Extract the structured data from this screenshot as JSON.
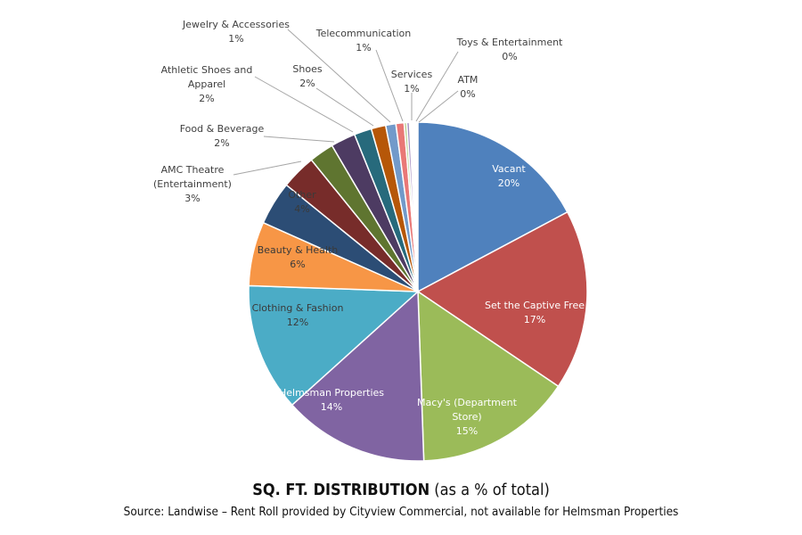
{
  "chart_data": {
    "type": "pie",
    "title_main": "SQ. FT. DISTRIBUTION",
    "title_sub": "(as a % of total)",
    "source": "Source: Landwise – Rent Roll provided by Cityview Commercial, not available for Helmsman Properties",
    "slices": [
      {
        "name": "Vacant",
        "value": 20,
        "label": "20%",
        "color": "#4f81bd"
      },
      {
        "name": "Set the Captive Free",
        "value": 17,
        "label": "17%",
        "color": "#c0504d"
      },
      {
        "name": "Macy's (Department Store)",
        "value": 15,
        "label": "15%",
        "color": "#9bbb59"
      },
      {
        "name": "Helmsman Properties",
        "value": 14,
        "label": "14%",
        "color": "#8064a2"
      },
      {
        "name": "Clothing & Fashion",
        "value": 12,
        "label": "12%",
        "color": "#4bacc6"
      },
      {
        "name": "Beauty & Health",
        "value": 6,
        "label": "6%",
        "color": "#f79646"
      },
      {
        "name": "Other",
        "value": 4,
        "label": "4%",
        "color": "#2c4d75"
      },
      {
        "name": "AMC Theatre (Entertainment)",
        "value": 3,
        "label": "3%",
        "color": "#772c2a"
      },
      {
        "name": "Food & Beverage",
        "value": 2,
        "label": "2%",
        "color": "#5f7530"
      },
      {
        "name": "Athletic Shoes and Apparel",
        "value": 2,
        "label": "2%",
        "color": "#4d3b62"
      },
      {
        "name": "Shoes",
        "value": 2,
        "label": "2%",
        "color": "#276a7c"
      },
      {
        "name": "Jewelry & Accessories",
        "value": 1,
        "label": "1%",
        "color": "#b65708"
      },
      {
        "name": "Telecommunication",
        "value": 1,
        "label": "1%",
        "color": "#729aca"
      },
      {
        "name": "Services",
        "value": 1,
        "label": "1%",
        "color": "#e97876"
      },
      {
        "name": "Toys & Entertainment",
        "value": 0,
        "label": "0%",
        "color": "#b9cf8e"
      },
      {
        "name": "ATM",
        "value": 0,
        "label": "0%",
        "color": "#a48fc0"
      }
    ]
  }
}
